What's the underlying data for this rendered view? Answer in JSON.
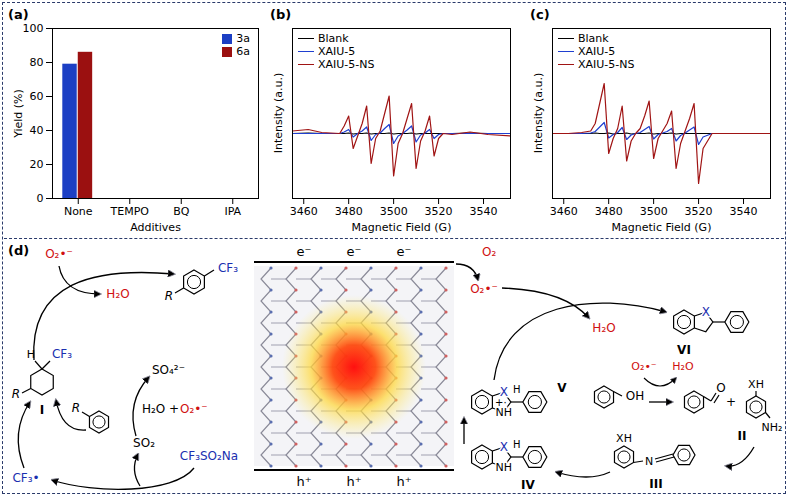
{
  "chart_data": [
    {
      "type": "bar",
      "panel_label": "(a)",
      "x_label": "Additives",
      "y_label": "Yield (%)",
      "categories": [
        "None",
        "TEMPO",
        "BQ",
        "IPA"
      ],
      "series": [
        {
          "name": "3a",
          "color": "#1c3fc4",
          "values": [
            79,
            0,
            0,
            0
          ]
        },
        {
          "name": "6a",
          "color": "#9b1010",
          "values": [
            86,
            0,
            0,
            0
          ]
        }
      ],
      "ylim": [
        0,
        100
      ],
      "yticks": [
        0,
        20,
        40,
        60,
        80,
        100
      ],
      "grid": false,
      "legend": "top-right"
    },
    {
      "type": "line",
      "panel_label": "(b)",
      "x_label": "Magnetic Field (G)",
      "y_label": "Intensity (a.u.)",
      "x": [
        3455,
        3462,
        3468,
        3476,
        3478,
        3480,
        3482,
        3484,
        3486,
        3488,
        3490,
        3492,
        3494,
        3496,
        3498,
        3500,
        3502,
        3504,
        3506,
        3508,
        3510,
        3512,
        3514,
        3516,
        3518,
        3520,
        3522,
        3526,
        3534,
        3542,
        3552
      ],
      "series": [
        {
          "name": "Blank",
          "color": "#000000",
          "values": [
            0,
            0.01,
            0,
            0,
            0,
            0.01,
            -0.01,
            0,
            0,
            0.01,
            -0.01,
            0,
            0,
            0,
            0.01,
            -0.01,
            0,
            0,
            0,
            0.01,
            -0.01,
            0,
            0,
            0,
            0,
            0,
            0,
            0,
            0.01,
            0,
            0
          ]
        },
        {
          "name": "XAIU-5",
          "color": "#1f3fd0",
          "values": [
            0,
            0,
            0,
            0,
            0.03,
            0.08,
            -0.07,
            0,
            0.05,
            0.13,
            -0.14,
            -0.02,
            0.01,
            0.1,
            0.18,
            -0.2,
            -0.05,
            0,
            0.07,
            0.15,
            -0.17,
            -0.03,
            0.01,
            0.08,
            -0.1,
            -0.02,
            0,
            0,
            0,
            0,
            0
          ]
        },
        {
          "name": "XAIU-5-NS",
          "color": "#a01414",
          "values": [
            0.05,
            0.08,
            0.02,
            0,
            0.15,
            0.35,
            -0.3,
            -0.05,
            0.2,
            0.55,
            -0.6,
            -0.1,
            0.05,
            0.4,
            0.75,
            -0.85,
            -0.2,
            0,
            0.3,
            0.6,
            -0.7,
            -0.15,
            0.05,
            0.35,
            -0.45,
            -0.1,
            0,
            -0.02,
            0.03,
            -0.02,
            -0.05
          ]
        }
      ],
      "xlim": [
        3455,
        3552
      ],
      "xticks": [
        3460,
        3480,
        3500,
        3520,
        3540
      ],
      "ylim": [
        -1.3,
        2.1
      ],
      "tick_labels": "x",
      "grid": false,
      "legend": "top-left"
    },
    {
      "type": "line",
      "panel_label": "(c)",
      "x_label": "Magnetic Field (G)",
      "y_label": "Intensity (a.u.)",
      "x": [
        3455,
        3462,
        3468,
        3472,
        3474,
        3476,
        3478,
        3480,
        3482,
        3484,
        3486,
        3488,
        3490,
        3492,
        3494,
        3496,
        3498,
        3500,
        3502,
        3504,
        3506,
        3508,
        3510,
        3512,
        3514,
        3516,
        3518,
        3520,
        3522,
        3526,
        3534,
        3542,
        3552
      ],
      "series": [
        {
          "name": "Blank",
          "color": "#000000",
          "values": [
            0,
            0,
            0,
            0,
            0.01,
            0,
            0,
            0.01,
            -0.01,
            0,
            0,
            0.01,
            -0.01,
            0,
            0,
            0,
            0.01,
            -0.01,
            0,
            0,
            0,
            0.01,
            -0.01,
            0,
            0,
            0,
            0,
            0,
            0,
            0,
            0,
            0,
            0
          ]
        },
        {
          "name": "XAIU-5",
          "color": "#1f3fd0",
          "values": [
            0,
            0,
            0,
            0.01,
            0.04,
            0.13,
            0.22,
            -0.09,
            -0.02,
            0.02,
            0.12,
            -0.12,
            -0.03,
            0,
            0.02,
            0.08,
            0.14,
            -0.11,
            -0.02,
            0.01,
            0.04,
            0.1,
            -0.15,
            -0.04,
            0.01,
            0.07,
            0.13,
            -0.22,
            -0.07,
            0,
            0,
            0,
            0
          ]
        },
        {
          "name": "XAIU-5-NS",
          "color": "#a01414",
          "values": [
            0,
            0,
            0.02,
            0.05,
            0.2,
            0.6,
            1,
            -0.4,
            -0.1,
            0.1,
            0.55,
            -0.55,
            -0.15,
            0,
            0.1,
            0.35,
            0.65,
            -0.5,
            -0.1,
            0.05,
            0.2,
            0.45,
            -0.7,
            -0.2,
            0.05,
            0.3,
            0.6,
            -1,
            -0.3,
            0,
            0,
            0,
            0
          ]
        }
      ],
      "xlim": [
        3455,
        3552
      ],
      "xticks": [
        3460,
        3480,
        3500,
        3520,
        3540
      ],
      "ylim": [
        -1.3,
        2.1
      ],
      "tick_labels": "x",
      "grid": false,
      "legend": "top-left"
    }
  ],
  "diagram": {
    "panel_label": "(d)",
    "conduction_band": [
      "e⁻",
      "e⁻",
      "e⁻"
    ],
    "valence_band": [
      "h⁺",
      "h⁺",
      "h⁺"
    ],
    "trifluoromethylation": {
      "o2_radical": "O₂•⁻",
      "water": "H₂O",
      "product_CF3": "CF₃",
      "product_R": "R",
      "I_R": "R",
      "I_H": "H",
      "I_CF3": "CF₃",
      "I_label": "I",
      "arene_R": "R",
      "radical": "CF₃•",
      "reagent": "CF₃SO₂Na",
      "so2": "SO₂",
      "water2": "H₂O +",
      "o2_radical2": "O₂•⁻",
      "sulfate": "SO₄²⁻"
    },
    "cyclization": {
      "o2": "O₂",
      "o2_radical": "O₂•⁻",
      "water": "H₂O",
      "VI_X": "X",
      "VI_label": "VI",
      "V_X": "X",
      "V_H": "H",
      "V_NH": "NH",
      "V_charge": "+·",
      "V_label": "V",
      "alcohol_OH": "OH",
      "o2_radical2": "O₂•⁻",
      "water2": "H₂O",
      "aldehyde_O": "O",
      "plus": "+",
      "II_XH": "XH",
      "II_NH2": "NH₂",
      "II_label": "II",
      "III_XH": "XH",
      "III_N": "N",
      "III_label": "III",
      "IV_X": "X",
      "IV_NH": "NH",
      "IV_H": "H",
      "IV_label": "IV"
    }
  }
}
